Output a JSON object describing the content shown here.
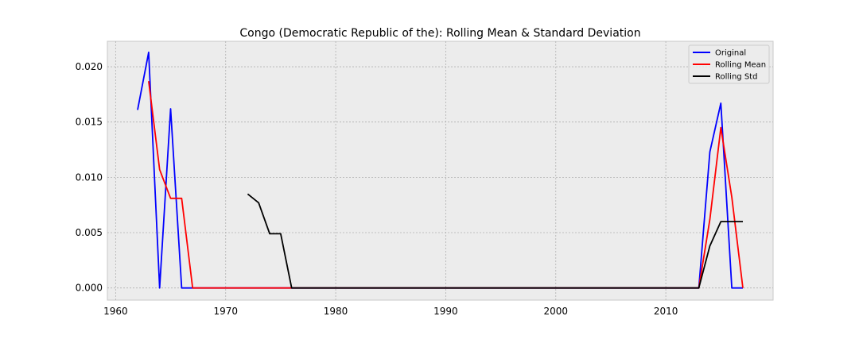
{
  "chart_data": {
    "type": "line",
    "title": "Congo (Democratic Republic of the): Rolling Mean & Standard Deviation",
    "xlabel": "",
    "ylabel": "",
    "xlim": [
      1959.25,
      2019.75
    ],
    "ylim": [
      -0.0011,
      0.0223
    ],
    "xticks": [
      1960,
      1970,
      1980,
      1990,
      2000,
      2010
    ],
    "yticks": [
      0.0,
      0.005,
      0.01,
      0.015,
      0.02
    ],
    "ytick_labels": [
      "0.000",
      "0.005",
      "0.010",
      "0.015",
      "0.020"
    ],
    "grid": true,
    "legend_position": "top-right",
    "series": [
      {
        "name": "Original",
        "color": "#0000ff",
        "x": [
          1962,
          1963,
          1964,
          1965,
          1966,
          1967,
          2013,
          2014,
          2015,
          2016,
          2017
        ],
        "y": [
          0.0161,
          0.0213,
          0.0,
          0.0162,
          0.0,
          0.0,
          0.0,
          0.0123,
          0.0167,
          0.0,
          0.0
        ]
      },
      {
        "name": "Rolling Mean",
        "color": "#ff0000",
        "x": [
          1963,
          1964,
          1965,
          1966,
          1967,
          2013,
          2014,
          2015,
          2016,
          2017
        ],
        "y": [
          0.0187,
          0.0107,
          0.0081,
          0.0081,
          0.0,
          0.0,
          0.0062,
          0.0145,
          0.0082,
          0.0
        ]
      },
      {
        "name": "Rolling Std",
        "color": "#000000",
        "x": [
          1972,
          1973,
          1974,
          1975,
          1976,
          2013,
          2014,
          2015,
          2016,
          2017
        ],
        "y": [
          0.0085,
          0.0077,
          0.0049,
          0.0049,
          0.0,
          0.0,
          0.0038,
          0.006,
          0.006,
          0.006
        ]
      }
    ]
  }
}
